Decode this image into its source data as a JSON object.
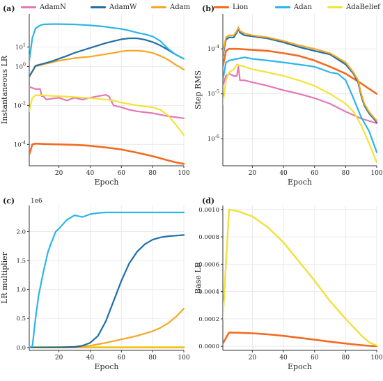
{
  "colors": {
    "AdamN": "#e377b7",
    "AdamW": "#1f6fa8",
    "Adam": "#f5a623",
    "Lion": "#f26b21",
    "Adan": "#2bb5e8",
    "AdaBelief": "#f2e33a"
  },
  "legend": {
    "placement": "top",
    "entries": [
      "AdamN",
      "AdamW",
      "Adam",
      "Lion",
      "Adan",
      "AdaBelief"
    ]
  },
  "chart_data": [
    {
      "panel": "(a)",
      "type": "line",
      "xlabel": "Epoch",
      "ylabel": "Instantaneous LR",
      "yscale": "log",
      "xlim": [
        1,
        100
      ],
      "ylim": [
        8e-06,
        500
      ],
      "xticks": [
        20,
        40,
        60,
        80,
        100
      ],
      "yticks": [
        0.0001,
        0.01,
        1,
        10
      ],
      "ytick_labels": [
        "10^-4",
        "10^-2",
        "10^0",
        "10^1"
      ],
      "grid": true,
      "series": [
        {
          "name": "Adan",
          "x": [
            1,
            3,
            5,
            8,
            10,
            15,
            20,
            30,
            40,
            50,
            55,
            60,
            65,
            70,
            75,
            80,
            85,
            90,
            95,
            100
          ],
          "y": [
            2,
            30,
            90,
            130,
            145,
            150,
            150,
            145,
            130,
            110,
            95,
            85,
            70,
            55,
            45,
            35,
            20,
            8,
            4,
            2.5
          ]
        },
        {
          "name": "AdamW",
          "x": [
            1,
            5,
            10,
            15,
            20,
            25,
            30,
            40,
            50,
            55,
            60,
            65,
            70,
            75,
            80,
            85,
            90,
            95,
            100
          ],
          "y": [
            0.3,
            1.1,
            1.4,
            1.8,
            2.5,
            3.5,
            5,
            9,
            16,
            20,
            25,
            28,
            28,
            24,
            18,
            12,
            7,
            4,
            2.5
          ]
        },
        {
          "name": "Adam",
          "x": [
            1,
            5,
            10,
            15,
            20,
            25,
            30,
            40,
            50,
            55,
            60,
            65,
            70,
            75,
            80,
            85,
            90,
            95,
            100
          ],
          "y": [
            0.3,
            1.0,
            1.3,
            1.6,
            2.0,
            2.3,
            2.7,
            3.2,
            4.3,
            5,
            6,
            6.5,
            6.5,
            6,
            5,
            3.5,
            2.2,
            1.2,
            0.7
          ]
        },
        {
          "name": "AdamN",
          "x": [
            1,
            5,
            8,
            9,
            10,
            12,
            15,
            20,
            25,
            30,
            35,
            40,
            45,
            50,
            52,
            55,
            60,
            65,
            70,
            80,
            90,
            100
          ],
          "y": [
            0.09,
            0.07,
            0.07,
            0.03,
            0.03,
            0.02,
            0.022,
            0.025,
            0.018,
            0.025,
            0.02,
            0.025,
            0.03,
            0.035,
            0.03,
            0.01,
            0.008,
            0.006,
            0.005,
            0.004,
            0.0028,
            0.0022
          ]
        },
        {
          "name": "AdaBelief",
          "x": [
            1,
            3,
            5,
            10,
            15,
            20,
            30,
            40,
            50,
            55,
            60,
            65,
            70,
            75,
            80,
            85,
            90,
            95,
            100
          ],
          "y": [
            0.005,
            0.025,
            0.033,
            0.033,
            0.031,
            0.03,
            0.027,
            0.024,
            0.02,
            0.018,
            0.014,
            0.012,
            0.01,
            0.009,
            0.008,
            0.006,
            0.003,
            0.001,
            0.0003
          ]
        },
        {
          "name": "Lion",
          "x": [
            1,
            3,
            5,
            10,
            20,
            30,
            40,
            50,
            60,
            70,
            80,
            90,
            95,
            100
          ],
          "y": [
            3e-05,
            0.0001,
            0.00011,
            0.000105,
            0.0001,
            9.5e-05,
            8.5e-05,
            7e-05,
            5.5e-05,
            3.8e-05,
            2.5e-05,
            1.5e-05,
            1.2e-05,
            1e-05
          ]
        }
      ]
    },
    {
      "panel": "(b)",
      "type": "line",
      "xlabel": "Epoch",
      "ylabel": "Step RMS",
      "yscale": "log",
      "xlim": [
        1,
        100
      ],
      "ylim": [
        2.5e-07,
        0.0006
      ],
      "xticks": [
        20,
        40,
        60,
        80,
        100
      ],
      "yticks": [
        1e-06,
        1e-05,
        0.0001
      ],
      "ytick_labels": [
        "10^-6",
        "10^-5",
        "10^-4"
      ],
      "grid": true,
      "series": [
        {
          "name": "Adam",
          "x": [
            1,
            3,
            5,
            8,
            10,
            11,
            12,
            15,
            20,
            30,
            40,
            50,
            60,
            70,
            80,
            85,
            88,
            90,
            92,
            95,
            98,
            100
          ],
          "y": [
            8e-05,
            0.00018,
            0.0002,
            0.0002,
            0.00025,
            0.0003,
            0.00025,
            0.00022,
            0.0002,
            0.00018,
            0.00015,
            0.00012,
            0.0001,
            8e-05,
            5e-05,
            3e-05,
            2e-05,
            1e-05,
            6e-06,
            4e-06,
            3e-06,
            2.5e-06
          ]
        },
        {
          "name": "AdamW",
          "x": [
            1,
            3,
            5,
            8,
            10,
            11,
            12,
            15,
            20,
            30,
            40,
            50,
            60,
            70,
            80,
            85,
            88,
            90,
            92,
            95,
            98,
            100
          ],
          "y": [
            7e-05,
            0.00016,
            0.00018,
            0.00018,
            0.00023,
            0.00028,
            0.00023,
            0.0002,
            0.00019,
            0.00017,
            0.00014,
            0.00011,
            9e-05,
            7.5e-05,
            4.5e-05,
            2.8e-05,
            1.8e-05,
            9e-06,
            5.5e-06,
            3.7e-06,
            2.8e-06,
            2.3e-06
          ]
        },
        {
          "name": "Lion",
          "x": [
            1,
            3,
            5,
            10,
            20,
            30,
            40,
            50,
            60,
            70,
            80,
            90,
            95,
            100
          ],
          "y": [
            4e-05,
            9e-05,
            0.0001,
            0.0001,
            9.5e-05,
            9e-05,
            8e-05,
            7e-05,
            5.5e-05,
            4e-05,
            2.8e-05,
            1.7e-05,
            1.3e-05,
            1e-05
          ]
        },
        {
          "name": "Adan",
          "x": [
            1,
            3,
            5,
            10,
            15,
            20,
            30,
            40,
            50,
            60,
            70,
            75,
            80,
            85,
            90,
            95,
            100
          ],
          "y": [
            2e-05,
            5e-05,
            5.5e-05,
            6e-05,
            6.5e-05,
            6e-05,
            5.5e-05,
            5e-05,
            4.5e-05,
            4e-05,
            3e-05,
            2.8e-05,
            2e-05,
            8e-06,
            3e-06,
            1.5e-06,
            5e-07
          ]
        },
        {
          "name": "AdaBelief",
          "x": [
            1,
            3,
            5,
            8,
            10,
            15,
            20,
            30,
            40,
            50,
            60,
            70,
            80,
            85,
            90,
            95,
            100
          ],
          "y": [
            6e-06,
            2e-05,
            3e-05,
            3.5e-05,
            4.5e-05,
            4e-05,
            3.5e-05,
            3e-05,
            2.5e-05,
            2e-05,
            1.5e-05,
            1e-05,
            6e-06,
            4e-06,
            2e-06,
            8e-07,
            3e-07
          ]
        },
        {
          "name": "AdamN",
          "x": [
            1,
            3,
            5,
            8,
            10,
            11,
            12,
            15,
            20,
            30,
            40,
            50,
            60,
            70,
            80,
            90,
            95,
            100
          ],
          "y": [
            1.5e-05,
            2.5e-05,
            2.8e-05,
            2.5e-05,
            2.5e-05,
            4e-05,
            2e-05,
            2e-05,
            1.8e-05,
            1.5e-05,
            1.2e-05,
            1e-05,
            8e-06,
            6e-06,
            4e-06,
            2.8e-06,
            2.5e-06,
            2.2e-06
          ]
        }
      ]
    },
    {
      "panel": "(c)",
      "type": "line",
      "xlabel": "Epoch",
      "ylabel": "LR multiplier",
      "yscale": "linear",
      "offset_label": "1e6",
      "xlim": [
        1,
        100
      ],
      "ylim": [
        -0.05,
        2.45
      ],
      "xticks": [
        20,
        40,
        60,
        80,
        100
      ],
      "yticks": [
        0,
        0.5,
        1.0,
        1.5,
        2.0
      ],
      "ytick_labels": [
        "0.0",
        "0.5",
        "1.0",
        "1.5",
        "2.0"
      ],
      "grid": true,
      "series": [
        {
          "name": "Adan",
          "x": [
            1,
            3,
            5,
            7,
            10,
            13,
            15,
            18,
            20,
            25,
            30,
            35,
            40,
            45,
            50,
            60,
            70,
            80,
            90,
            100
          ],
          "y": [
            0,
            0.02,
            0.5,
            0.9,
            1.3,
            1.65,
            1.8,
            2.0,
            2.05,
            2.2,
            2.28,
            2.25,
            2.3,
            2.32,
            2.33,
            2.33,
            2.33,
            2.33,
            2.33,
            2.33
          ]
        },
        {
          "name": "AdamW",
          "x": [
            1,
            20,
            30,
            35,
            40,
            45,
            50,
            55,
            60,
            65,
            70,
            75,
            80,
            85,
            90,
            95,
            100
          ],
          "y": [
            0,
            0.003,
            0.01,
            0.03,
            0.08,
            0.2,
            0.45,
            0.8,
            1.15,
            1.45,
            1.65,
            1.78,
            1.86,
            1.9,
            1.92,
            1.93,
            1.94
          ]
        },
        {
          "name": "Adam",
          "x": [
            1,
            30,
            40,
            50,
            60,
            70,
            80,
            85,
            90,
            95,
            100
          ],
          "y": [
            0,
            0.005,
            0.03,
            0.08,
            0.14,
            0.2,
            0.28,
            0.34,
            0.42,
            0.53,
            0.67
          ]
        },
        {
          "name": "AdaBelief",
          "x": [
            1,
            100
          ],
          "y": [
            0.01,
            0.01
          ]
        },
        {
          "name": "Lion",
          "x": [
            1,
            100
          ],
          "y": [
            0.002,
            0.002
          ]
        },
        {
          "name": "AdamN",
          "x": [
            1,
            100
          ],
          "y": [
            0.0,
            0.0
          ]
        }
      ]
    },
    {
      "panel": "(d)",
      "type": "line",
      "xlabel": "Epoch",
      "ylabel": "Base LR",
      "yscale": "linear",
      "xlim": [
        1,
        100
      ],
      "ylim": [
        -3e-05,
        0.00103
      ],
      "xticks": [
        20,
        40,
        60,
        80,
        100
      ],
      "yticks": [
        0,
        0.0002,
        0.0004,
        0.0006,
        0.0008,
        0.001
      ],
      "ytick_labels": [
        "0.0000",
        "0.0002",
        "0.0004",
        "0.0006",
        "0.0008",
        "0.0010"
      ],
      "grid": true,
      "series": [
        {
          "name": "Adam",
          "x": [
            1,
            5,
            10,
            20,
            30,
            40,
            50,
            60,
            70,
            80,
            90,
            95,
            100
          ],
          "y": [
            0.0002,
            0.001,
            0.00099,
            0.00095,
            0.00087,
            0.00076,
            0.00062,
            0.00048,
            0.00033,
            0.0002,
            8e-05,
            3e-05,
            5e-06
          ]
        },
        {
          "name": "AdaBelief",
          "x": [
            1,
            5,
            10,
            20,
            30,
            40,
            50,
            60,
            70,
            80,
            90,
            95,
            100
          ],
          "y": [
            0.0002,
            0.001,
            0.00099,
            0.00095,
            0.00087,
            0.00076,
            0.00062,
            0.00048,
            0.00033,
            0.0002,
            8e-05,
            3e-05,
            5e-06
          ]
        },
        {
          "name": "Lion",
          "x": [
            1,
            5,
            10,
            20,
            30,
            40,
            50,
            60,
            70,
            80,
            90,
            95,
            100
          ],
          "y": [
            2e-05,
            0.0001,
            9.9e-05,
            9.5e-05,
            8.7e-05,
            7.6e-05,
            6.2e-05,
            4.8e-05,
            3.3e-05,
            2e-05,
            8e-06,
            3e-06,
            5e-07
          ]
        }
      ]
    }
  ]
}
